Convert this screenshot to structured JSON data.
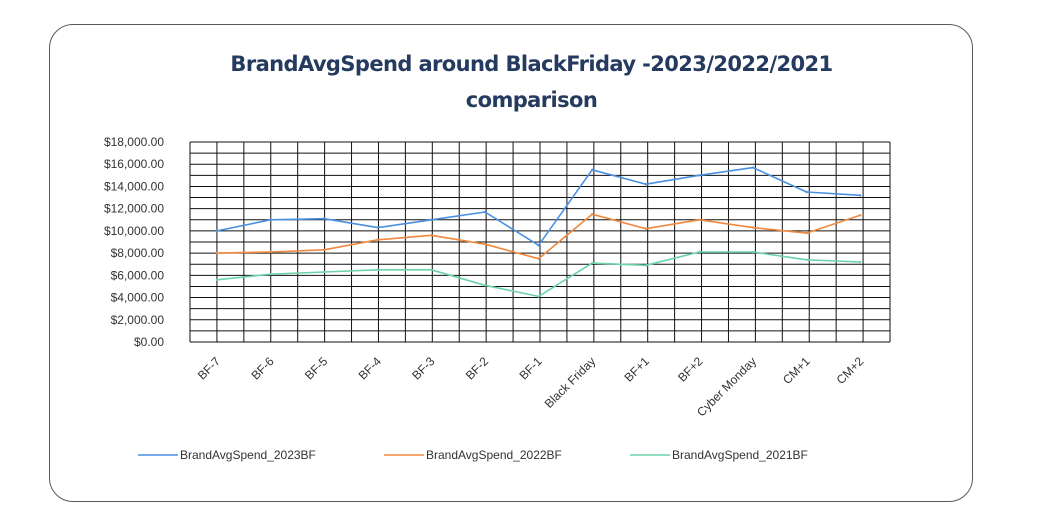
{
  "chart_data": {
    "type": "line",
    "title": "BrandAvgSpend around BlackFriday -2023/2022/2021",
    "subtitle": "comparison",
    "xlabel": "",
    "ylabel": "",
    "categories": [
      "BF-7",
      "BF-6",
      "BF-5",
      "BF-4",
      "BF-3",
      "BF-2",
      "BF-1",
      "Black Friday",
      "BF+1",
      "BF+2",
      "Cyber Monday",
      "CM+1",
      "CM+2"
    ],
    "ylim": [
      0,
      18000
    ],
    "yticks": [
      "$0.00",
      "$2,000.00",
      "$4,000.00",
      "$6,000.00",
      "$8,000.00",
      "$10,000.00",
      "$12,000.00",
      "$14,000.00",
      "$16,000.00",
      "$18,000.00"
    ],
    "grid": true,
    "legend_position": "bottom",
    "series": [
      {
        "name": "BrandAvgSpend_2023BF",
        "color": "#4a90e2",
        "values": [
          10000,
          11000,
          11100,
          10300,
          11000,
          11700,
          8700,
          15500,
          14200,
          15000,
          15700,
          13500,
          13200
        ]
      },
      {
        "name": "BrandAvgSpend_2022BF",
        "color": "#f0883e",
        "values": [
          8000,
          8100,
          8300,
          9200,
          9600,
          8800,
          7500,
          11500,
          10200,
          11000,
          10300,
          9800,
          11400
        ]
      },
      {
        "name": "BrandAvgSpend_2021BF",
        "color": "#6cd3a8",
        "values": [
          5600,
          6100,
          6300,
          6500,
          6500,
          5100,
          4100,
          7100,
          6900,
          8100,
          8100,
          7400,
          7200
        ]
      }
    ]
  }
}
